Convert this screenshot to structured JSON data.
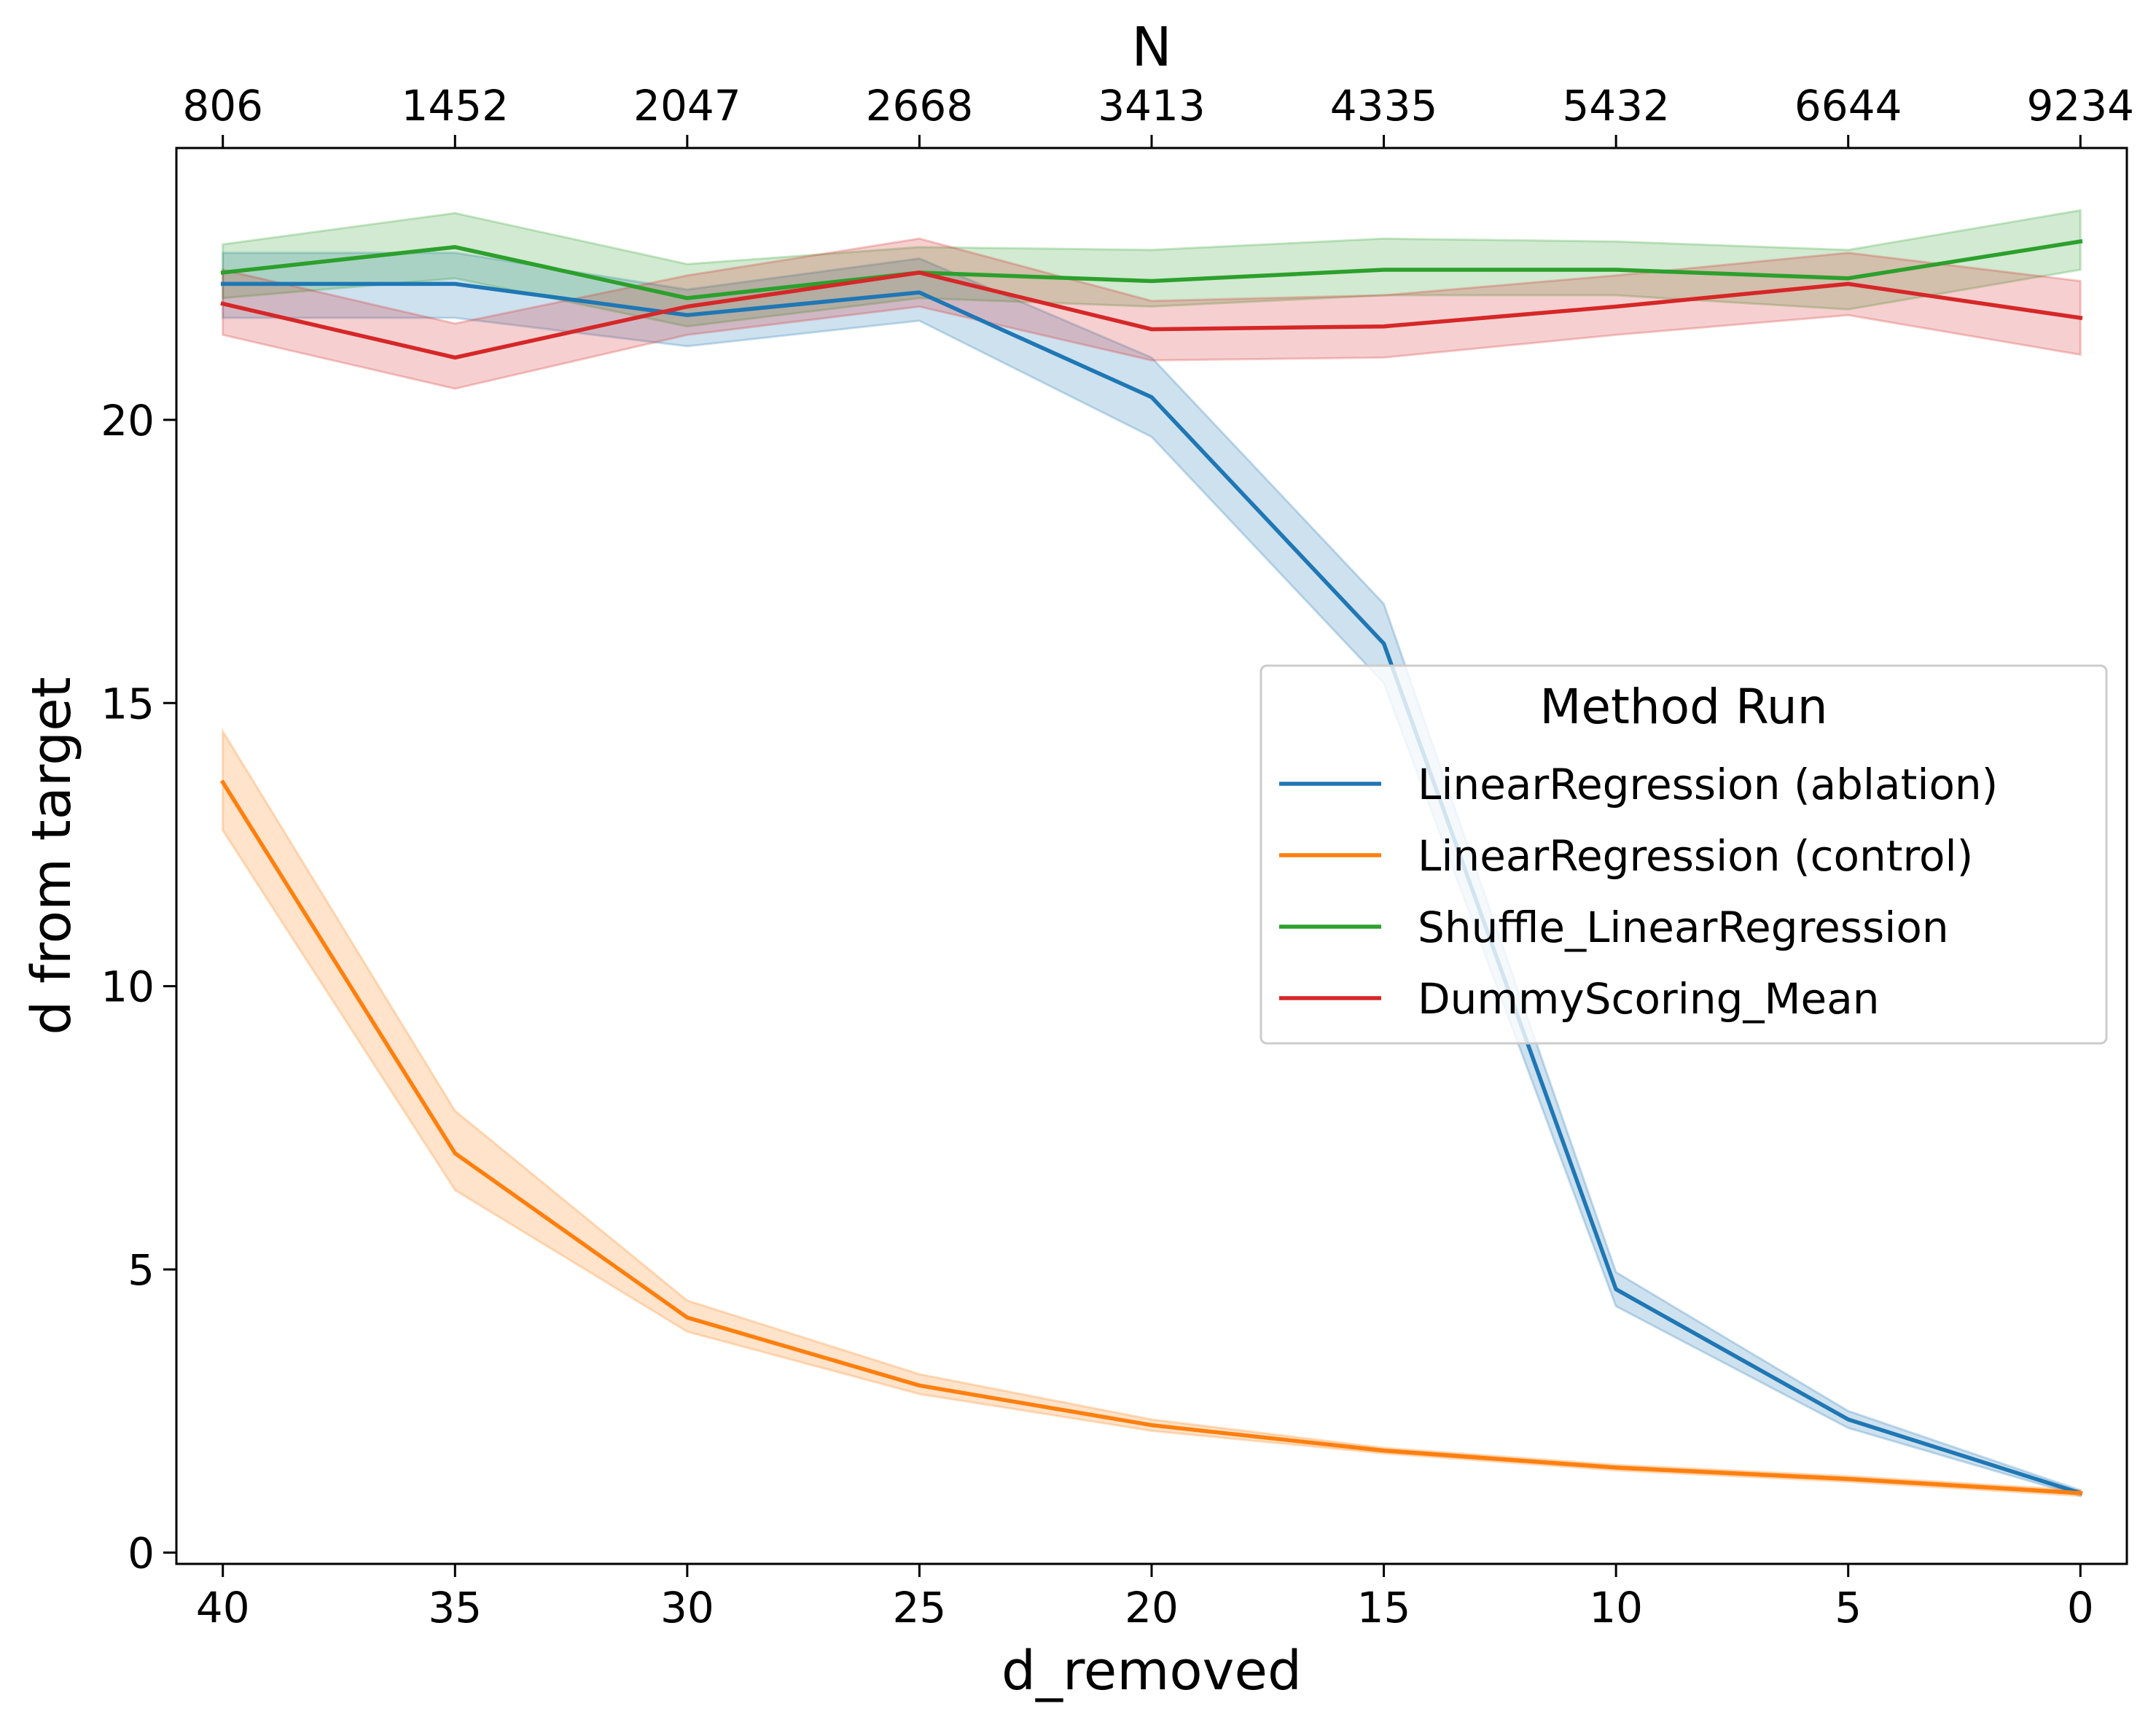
{
  "chart_data": {
    "type": "line",
    "title": "",
    "xlabel": "d_removed",
    "ylabel": "d from target",
    "top_xlabel": "N",
    "x": [
      40,
      35,
      30,
      25,
      20,
      15,
      10,
      5,
      0
    ],
    "x_tick_labels": [
      "40",
      "35",
      "30",
      "25",
      "20",
      "15",
      "10",
      "5",
      "0"
    ],
    "top_tick_labels": [
      "806",
      "1452",
      "2047",
      "2668",
      "3413",
      "4335",
      "5432",
      "6644",
      "9234"
    ],
    "y_ticks": [
      0,
      5,
      10,
      15,
      20
    ],
    "y_tick_labels": [
      "0",
      "5",
      "10",
      "15",
      "20"
    ],
    "xlim": [
      41,
      -1
    ],
    "ylim": [
      -0.2,
      24.8
    ],
    "x_inverted": true,
    "grid": false,
    "legend": {
      "title": "Method Run",
      "placement": "center-right"
    },
    "series": [
      {
        "name": "LinearRegression (ablation)",
        "color": "#1f77b4",
        "values": [
          22.4,
          22.4,
          21.85,
          22.25,
          20.4,
          16.05,
          4.65,
          2.35,
          1.05
        ],
        "lower": [
          21.8,
          21.8,
          21.3,
          21.75,
          19.7,
          15.35,
          4.35,
          2.2,
          1.0
        ],
        "upper": [
          22.95,
          22.95,
          22.3,
          22.85,
          21.1,
          16.75,
          4.95,
          2.5,
          1.1
        ]
      },
      {
        "name": "LinearRegression (control)",
        "color": "#ff7f0e",
        "values": [
          13.6,
          7.05,
          4.15,
          2.95,
          2.25,
          1.8,
          1.5,
          1.3,
          1.05
        ],
        "lower": [
          12.75,
          6.4,
          3.9,
          2.8,
          2.15,
          1.75,
          1.45,
          1.25,
          1.0
        ],
        "upper": [
          14.5,
          7.8,
          4.45,
          3.15,
          2.35,
          1.85,
          1.55,
          1.35,
          1.1
        ]
      },
      {
        "name": "Shuffle_LinearRegression",
        "color": "#2ca02c",
        "values": [
          22.6,
          23.05,
          22.15,
          22.6,
          22.45,
          22.65,
          22.65,
          22.5,
          23.15
        ],
        "lower": [
          22.15,
          22.5,
          21.65,
          22.15,
          22.0,
          22.2,
          22.2,
          21.95,
          22.65
        ],
        "upper": [
          23.1,
          23.65,
          22.75,
          23.05,
          23.0,
          23.2,
          23.15,
          23.0,
          23.7
        ]
      },
      {
        "name": "DummyScoring_Mean",
        "color": "#d62728",
        "values": [
          22.05,
          21.1,
          22.0,
          22.6,
          21.6,
          21.65,
          22.0,
          22.4,
          21.8
        ],
        "lower": [
          21.5,
          20.55,
          21.5,
          22.0,
          21.05,
          21.1,
          21.5,
          21.85,
          21.15
        ],
        "upper": [
          22.65,
          21.7,
          22.55,
          23.2,
          22.1,
          22.2,
          22.55,
          22.95,
          22.45
        ]
      }
    ]
  }
}
